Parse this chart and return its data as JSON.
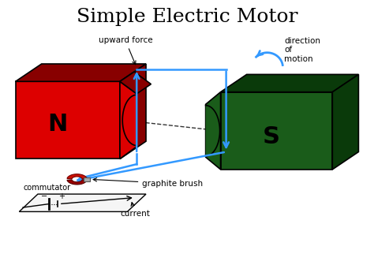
{
  "title": "Simple Electric Motor",
  "title_fontsize": 18,
  "bg_color": "#ffffff",
  "red_color": "#dd0000",
  "red_dark": "#880000",
  "red_mid": "#bb0000",
  "green_color": "#1a5c1a",
  "green_dark": "#0a3a0a",
  "green_mid": "#124012",
  "blue": "#3399ff",
  "black": "#000000",
  "label_N": "N",
  "label_S": "S",
  "label_upward_force": "upward force",
  "label_direction": "direction\nof\nmotion",
  "label_graphite": "graphite brush",
  "label_commutator": "commutator",
  "label_current": "current"
}
